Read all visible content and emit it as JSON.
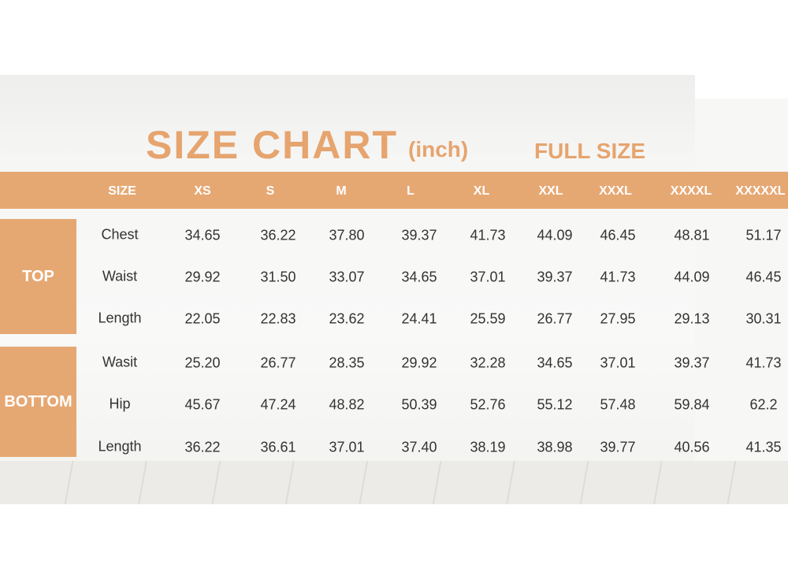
{
  "title": "SIZE CHART",
  "unit": "(inch)",
  "subtitle": "FULL SIZE",
  "colors": {
    "accent": "#e6a873",
    "title": "#e6a46e"
  },
  "chart_data": {
    "type": "table",
    "title": "SIZE CHART",
    "columns": [
      "SIZE",
      "XS",
      "S",
      "M",
      "L",
      "XL",
      "XXL",
      "XXXL",
      "XXXXL",
      "XXXXXL"
    ],
    "groups": [
      {
        "name": "TOP",
        "rows": [
          {
            "label": "Chest",
            "values": [
              "34.65",
              "36.22",
              "37.80",
              "39.37",
              "41.73",
              "44.09",
              "46.45",
              "48.81",
              "51.17"
            ]
          },
          {
            "label": "Waist",
            "values": [
              "29.92",
              "31.50",
              "33.07",
              "34.65",
              "37.01",
              "39.37",
              "41.73",
              "44.09",
              "46.45"
            ]
          },
          {
            "label": "Length",
            "values": [
              "22.05",
              "22.83",
              "23.62",
              "24.41",
              "25.59",
              "26.77",
              "27.95",
              "29.13",
              "30.31"
            ]
          }
        ]
      },
      {
        "name": "BOTTOM",
        "rows": [
          {
            "label": "Wasit",
            "values": [
              "25.20",
              "26.77",
              "28.35",
              "29.92",
              "32.28",
              "34.65",
              "37.01",
              "39.37",
              "41.73"
            ]
          },
          {
            "label": "Hip",
            "values": [
              "45.67",
              "47.24",
              "48.82",
              "50.39",
              "52.76",
              "55.12",
              "57.48",
              "59.84",
              "62.2"
            ]
          },
          {
            "label": "Length",
            "values": [
              "36.22",
              "36.61",
              "37.01",
              "37.40",
              "38.19",
              "38.98",
              "39.77",
              "40.56",
              "41.35"
            ]
          }
        ]
      }
    ]
  }
}
